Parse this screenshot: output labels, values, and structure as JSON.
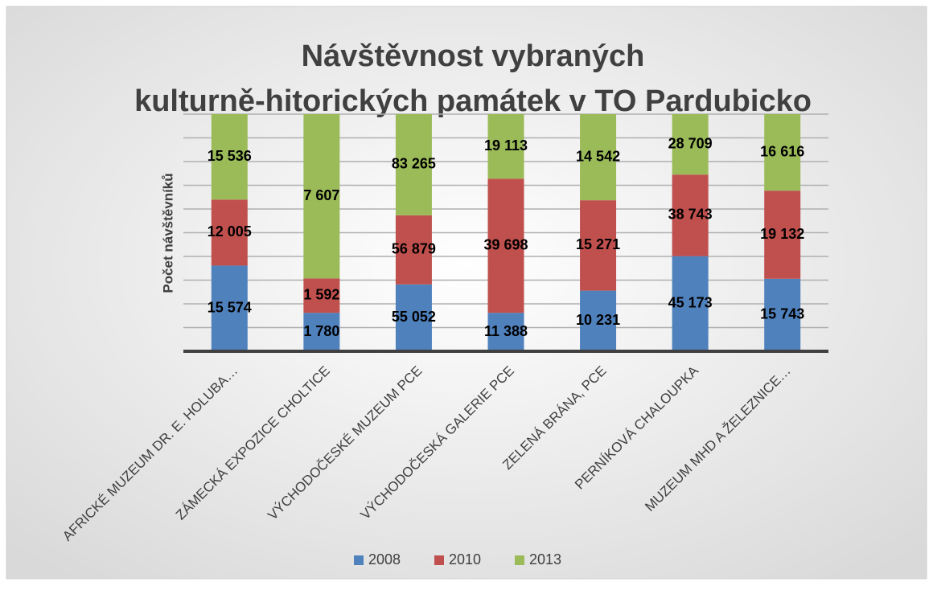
{
  "chart_data": {
    "type": "bar",
    "stacking": "percent",
    "title": "Návštěvnost vybraných  kulturně-hitorických památek v TO Pardubicko",
    "y_label": "Počet návštěvníků",
    "categories": [
      "AFRICKÉ MUZEUM DR. E. HOLUBA…",
      "ZÁMECKÁ EXPOZICE CHOLTICE",
      "VÝCHODOČESKÉ MUZEUM PCE",
      "VÝCHODOČESKÁ GALERIE PCE",
      "ZELENÁ BRÁNA, PCE",
      "PERNÍKOVÁ CHALOUPKA",
      "MUZEUM MHD A ŽELEZNICE…"
    ],
    "series": [
      {
        "name": "2008",
        "color": "#4f81bd",
        "values": [
          15574,
          1780,
          55052,
          11388,
          10231,
          45173,
          15743
        ],
        "value_labels": [
          "15 574",
          "1 780",
          "55 052",
          "11 388",
          "10 231",
          "45 173",
          "15 743"
        ]
      },
      {
        "name": "2010",
        "color": "#c0504d",
        "values": [
          12005,
          1592,
          56879,
          39698,
          15271,
          38743,
          19132
        ],
        "value_labels": [
          "12 005",
          "1 592",
          "56 879",
          "39 698",
          "15 271",
          "38 743",
          "19 132"
        ]
      },
      {
        "name": "2013",
        "color": "#9bbb59",
        "values": [
          15536,
          7607,
          83265,
          19113,
          14542,
          28709,
          16616
        ],
        "value_labels": [
          "15 536",
          "7 607",
          "83 265",
          "19 113",
          "14 542",
          "28 709",
          "16 616"
        ]
      }
    ],
    "ylim": [
      0,
      100
    ],
    "yticks": [
      0,
      10,
      20,
      30,
      40,
      50,
      60,
      70,
      80,
      90,
      100
    ],
    "grid": true,
    "legend": "bottom"
  }
}
